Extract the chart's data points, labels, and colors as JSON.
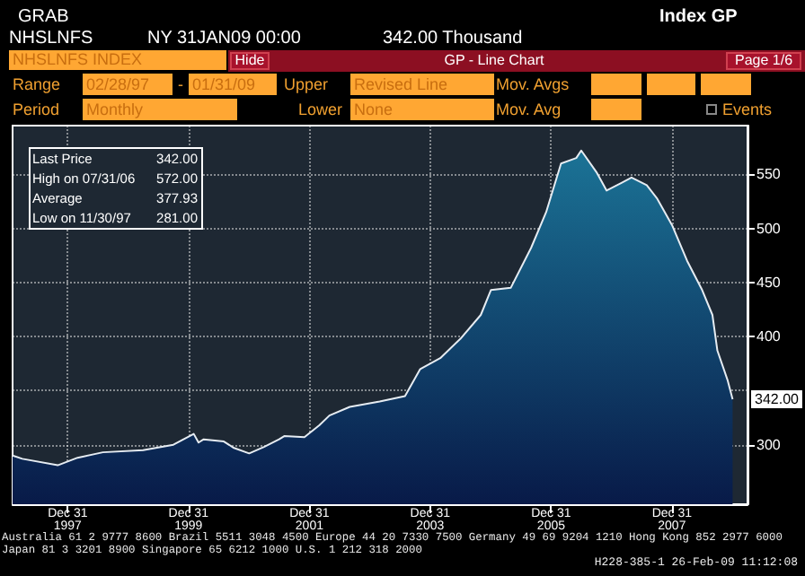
{
  "chart_data": {
    "type": "area",
    "x": [
      "1997-02",
      "1997-04",
      "1997-11",
      "1998-03",
      "1998-08",
      "1999-04",
      "1999-10",
      "2000-02",
      "2000-03",
      "2000-04",
      "2000-08",
      "2000-10",
      "2001-01",
      "2001-04",
      "2001-07",
      "2001-08",
      "2001-12",
      "2002-03",
      "2002-05",
      "2002-09",
      "2003-03",
      "2003-08",
      "2003-11",
      "2004-03",
      "2004-07",
      "2004-11",
      "2005-01",
      "2005-05",
      "2005-09",
      "2005-12",
      "2006-03",
      "2006-06",
      "2006-07",
      "2006-10",
      "2006-12",
      "2007-03",
      "2007-05",
      "2007-08",
      "2007-10",
      "2008-01",
      "2008-04",
      "2008-07",
      "2008-09",
      "2008-10",
      "2008-12",
      "2009-01"
    ],
    "series": [
      {
        "color": "#1b7396",
        "values": [
          290,
          287,
          281,
          288,
          293,
          295,
          300,
          310,
          302,
          305,
          303,
          297,
          292,
          298,
          305,
          308,
          307,
          318,
          327,
          335,
          340,
          345,
          370,
          380,
          398,
          420,
          443,
          445,
          482,
          515,
          560,
          565,
          572,
          552,
          535,
          542,
          547,
          540,
          528,
          503,
          470,
          443,
          420,
          387,
          360,
          342
        ]
      }
    ],
    "xlim": [
      "1997-02",
      "2009-04"
    ],
    "xticks": [
      {
        "value": "1997-12-31",
        "label": "Dec 31\n1997"
      },
      {
        "value": "1999-12-31",
        "label": "Dec 31\n1999"
      },
      {
        "value": "2001-12-31",
        "label": "Dec 31\n2001"
      },
      {
        "value": "2003-12-31",
        "label": "Dec 31\n2003"
      },
      {
        "value": "2005-12-31",
        "label": "Dec 31\n2005"
      },
      {
        "value": "2007-12-31",
        "label": "Dec 31\n2007"
      }
    ],
    "ylim": [
      245,
      595
    ],
    "yticks": [
      300,
      {
        "value": 350,
        "label": null
      },
      400,
      450,
      500,
      550
    ],
    "grid": true,
    "annotations": [
      "GRAB",
      "Index GP",
      "NHSLNFS",
      "NY 31JAN09 00:00",
      "342.00 Thousand",
      "NHSLNFS INDEX",
      "Hide",
      "GP - Line Chart",
      "Page 1/6",
      "Range",
      "02/28/97",
      "-",
      "01/31/09",
      "Upper",
      "Revised Line",
      "Mov. Avgs",
      "Period",
      "Monthly",
      "Lower",
      "None",
      "Mov. Avg",
      "Events",
      "Last Price",
      "342.00",
      "High on 07/31/06",
      "572.00",
      "Average",
      "377.93",
      "Low on 11/30/97",
      "281.00",
      "Australia 61 2 9777 8600 Brazil 5511 3048 4500 Europe 44 20 7330 7500 Germany 49 69 9204 1210 Hong Kong 852 2977 6000",
      "Japan 81 3 3201 8900 Singapore 65 6212 1000 U.S. 1 212 318 2000",
      "H228-385-1 26-Feb-09 11:12:08",
      {
        "text": "342.00",
        "x": "2009-01",
        "y": 342
      }
    ]
  }
}
